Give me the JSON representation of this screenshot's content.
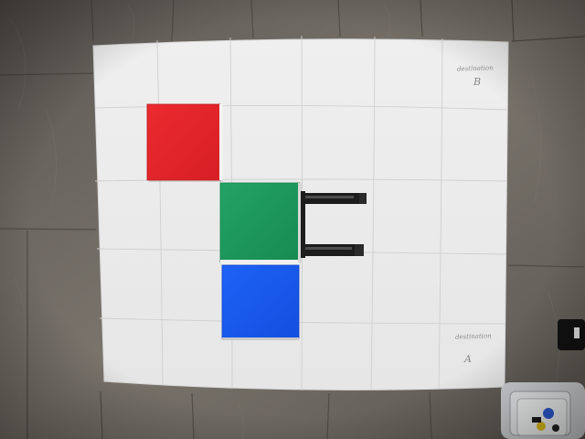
{
  "scene": {
    "description_labels": {
      "board": "white grid board",
      "floor": "wooden floor"
    },
    "board_labels": {
      "destination_b_text": "destination",
      "destination_b_letter": "B",
      "destination_a_text": "destination",
      "destination_a_letter": "A"
    },
    "blocks": [
      {
        "name": "red-block",
        "color": "#e5262b"
      },
      {
        "name": "green-block",
        "color": "#1f9a5e"
      },
      {
        "name": "blue-block",
        "color": "#1a5af0"
      }
    ],
    "gripper": {
      "name": "robot-gripper",
      "color": "#1c1c1c"
    }
  }
}
